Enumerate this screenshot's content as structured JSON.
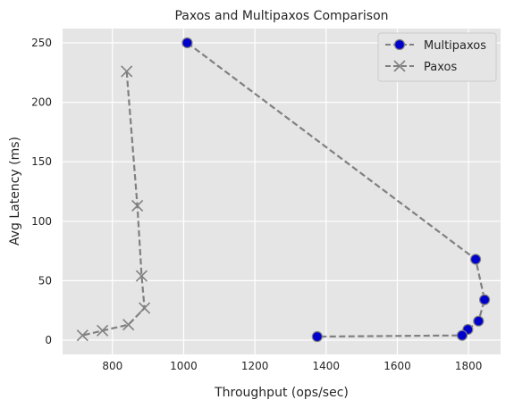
{
  "chart_data": {
    "type": "line",
    "title": "Paxos and Multipaxos Comparison",
    "xlabel": "Throughput (ops/sec)",
    "ylabel": "Avg Latency (ms)",
    "xlim": [
      660,
      1890
    ],
    "ylim": [
      -12,
      262
    ],
    "xticks": [
      800,
      1000,
      1200,
      1400,
      1600,
      1800
    ],
    "yticks": [
      0,
      50,
      100,
      150,
      200,
      250
    ],
    "grid": true,
    "legend": "top-right",
    "colors": {
      "background": "#e5e5e5",
      "grid": "#ffffff",
      "line": "#808080",
      "marker_fill": "#0000cc",
      "marker_edge": "#7f7f7f"
    },
    "series": [
      {
        "name": "Multipaxos",
        "marker": "circle",
        "points": [
          {
            "x": 1010,
            "y": 250
          },
          {
            "x": 1820,
            "y": 68
          },
          {
            "x": 1845,
            "y": 34
          },
          {
            "x": 1828,
            "y": 16
          },
          {
            "x": 1798,
            "y": 9
          },
          {
            "x": 1782,
            "y": 4
          },
          {
            "x": 1375,
            "y": 3
          }
        ]
      },
      {
        "name": "Paxos",
        "marker": "x",
        "points": [
          {
            "x": 840,
            "y": 226
          },
          {
            "x": 870,
            "y": 113
          },
          {
            "x": 882,
            "y": 54
          },
          {
            "x": 890,
            "y": 27
          },
          {
            "x": 845,
            "y": 13
          },
          {
            "x": 772,
            "y": 8
          },
          {
            "x": 716,
            "y": 4
          }
        ]
      }
    ]
  }
}
